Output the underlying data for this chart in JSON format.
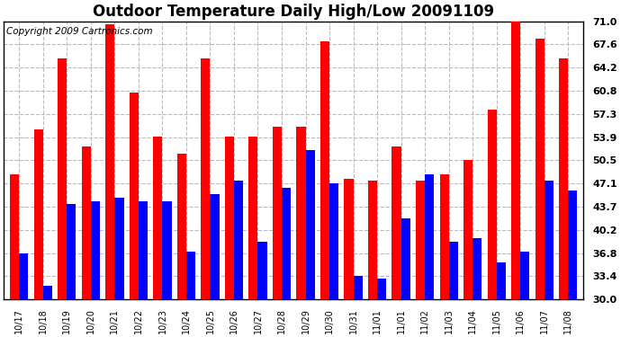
{
  "title": "Outdoor Temperature Daily High/Low 20091109",
  "copyright": "Copyright 2009 Cartronics.com",
  "categories": [
    "10/17",
    "10/18",
    "10/19",
    "10/20",
    "10/21",
    "10/22",
    "10/23",
    "10/24",
    "10/25",
    "10/26",
    "10/27",
    "10/28",
    "10/29",
    "10/30",
    "10/31",
    "11/01",
    "11/01",
    "11/02",
    "11/03",
    "11/04",
    "11/05",
    "11/06",
    "11/07",
    "11/08"
  ],
  "highs": [
    48.5,
    55.0,
    65.5,
    52.5,
    70.5,
    60.5,
    54.0,
    51.5,
    65.5,
    54.0,
    54.0,
    55.5,
    55.5,
    68.0,
    47.8,
    47.5,
    52.5,
    47.5,
    48.5,
    50.5,
    58.0,
    71.0,
    68.5,
    65.5
  ],
  "lows": [
    36.8,
    32.0,
    44.0,
    44.5,
    45.0,
    44.5,
    44.5,
    37.0,
    45.5,
    47.5,
    38.5,
    46.5,
    52.0,
    47.1,
    33.5,
    33.0,
    42.0,
    48.5,
    38.5,
    39.0,
    35.5,
    37.0,
    47.5,
    46.0
  ],
  "high_color": "#FF0000",
  "low_color": "#0000FF",
  "bar_width": 0.38,
  "ylim": [
    30.0,
    71.0
  ],
  "yticks": [
    30.0,
    33.4,
    36.8,
    40.2,
    43.7,
    47.1,
    50.5,
    53.9,
    57.3,
    60.8,
    64.2,
    67.6,
    71.0
  ],
  "grid_color": "#BBBBBB",
  "bg_color": "#FFFFFF",
  "plot_bg": "#FFFFFF",
  "title_fontsize": 12,
  "copyright_fontsize": 7.5,
  "tick_fontsize": 7,
  "ytick_fontsize": 8
}
